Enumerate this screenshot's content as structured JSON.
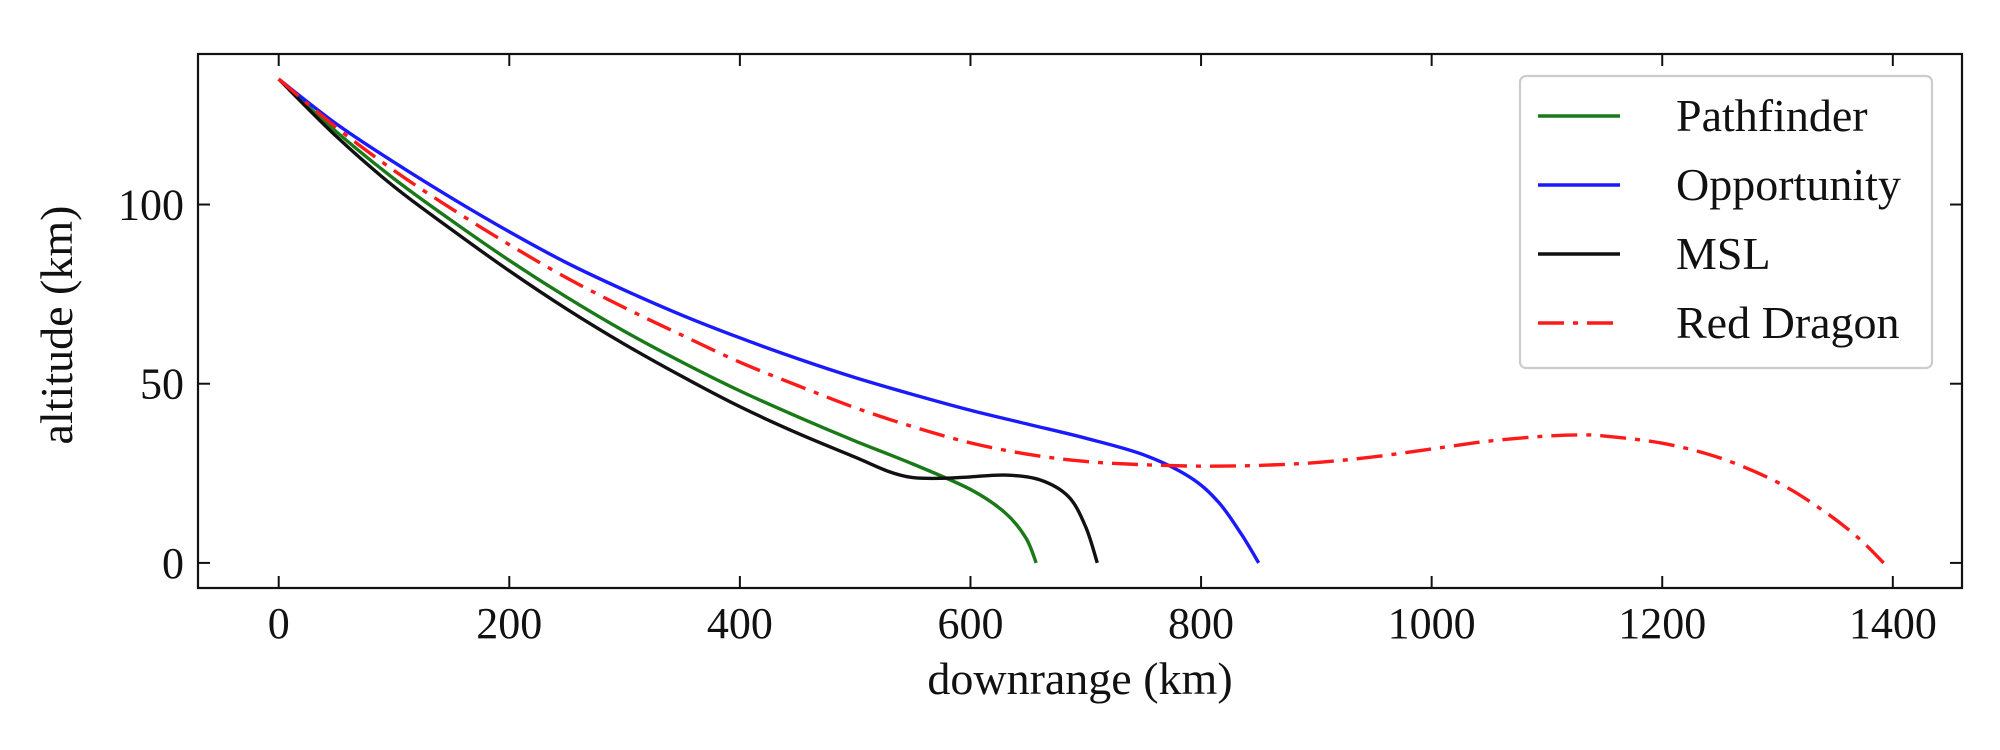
{
  "chart_data": {
    "type": "line",
    "title": "",
    "xlabel": "downrange (km)",
    "ylabel": "altitude (km)",
    "xlim": [
      -70,
      1460
    ],
    "ylim": [
      -7,
      142
    ],
    "xticks": [
      0,
      200,
      400,
      600,
      800,
      1000,
      1200,
      1400
    ],
    "yticks": [
      0,
      50,
      100
    ],
    "xtick_labels": [
      "0",
      "200",
      "400",
      "600",
      "800",
      "1000",
      "1200",
      "1400"
    ],
    "ytick_labels": [
      "0",
      "50",
      "100"
    ],
    "grid": false,
    "tick_direction": "in",
    "legend_position": "top-right",
    "series": [
      {
        "name": "Pathfinder",
        "color": "#1a7a1a",
        "dash": "solid",
        "points": [
          [
            0,
            135
          ],
          [
            50,
            120.3
          ],
          [
            100,
            107.2
          ],
          [
            150,
            95.5
          ],
          [
            200,
            84.4
          ],
          [
            250,
            74.1
          ],
          [
            300,
            64.6
          ],
          [
            350,
            56
          ],
          [
            400,
            48
          ],
          [
            450,
            40.8
          ],
          [
            500,
            34
          ],
          [
            550,
            27.6
          ],
          [
            600,
            20.5
          ],
          [
            630,
            14
          ],
          [
            648,
            7
          ],
          [
            657,
            0
          ]
        ]
      },
      {
        "name": "Opportunity",
        "color": "#1a1aff",
        "dash": "solid",
        "points": [
          [
            0,
            135
          ],
          [
            50,
            122.5
          ],
          [
            100,
            111.8
          ],
          [
            150,
            101.8
          ],
          [
            200,
            92.4
          ],
          [
            250,
            83.7
          ],
          [
            300,
            76.1
          ],
          [
            350,
            69.1
          ],
          [
            400,
            62.8
          ],
          [
            450,
            57
          ],
          [
            500,
            51.7
          ],
          [
            550,
            47
          ],
          [
            600,
            42.6
          ],
          [
            650,
            38.7
          ],
          [
            700,
            34.8
          ],
          [
            750,
            30.2
          ],
          [
            790,
            24
          ],
          [
            815,
            17
          ],
          [
            835,
            8
          ],
          [
            850,
            0
          ]
        ]
      },
      {
        "name": "MSL",
        "color": "#111111",
        "dash": "solid",
        "points": [
          [
            0,
            135
          ],
          [
            50,
            119
          ],
          [
            100,
            105
          ],
          [
            150,
            93
          ],
          [
            200,
            81.5
          ],
          [
            250,
            70.8
          ],
          [
            300,
            61
          ],
          [
            350,
            52
          ],
          [
            400,
            43.6
          ],
          [
            450,
            36.2
          ],
          [
            500,
            29.5
          ],
          [
            530,
            25.4
          ],
          [
            550,
            23.8
          ],
          [
            575,
            23.6
          ],
          [
            600,
            24
          ],
          [
            630,
            24.5
          ],
          [
            660,
            23.2
          ],
          [
            685,
            18.5
          ],
          [
            700,
            10
          ],
          [
            710,
            0
          ]
        ]
      },
      {
        "name": "Red Dragon",
        "color": "#ff1a1a",
        "dash": "dashdot",
        "points": [
          [
            0,
            135
          ],
          [
            50,
            121.5
          ],
          [
            100,
            109.5
          ],
          [
            150,
            98.8
          ],
          [
            200,
            88.8
          ],
          [
            250,
            79.5
          ],
          [
            300,
            71.2
          ],
          [
            350,
            63.5
          ],
          [
            400,
            56
          ],
          [
            450,
            49.5
          ],
          [
            500,
            43.3
          ],
          [
            550,
            38
          ],
          [
            600,
            33.5
          ],
          [
            650,
            30.3
          ],
          [
            700,
            28.3
          ],
          [
            750,
            27.4
          ],
          [
            800,
            27
          ],
          [
            850,
            27.2
          ],
          [
            900,
            28
          ],
          [
            950,
            29.6
          ],
          [
            1000,
            31.8
          ],
          [
            1050,
            34
          ],
          [
            1100,
            35.4
          ],
          [
            1130,
            35.7
          ],
          [
            1150,
            35.4
          ],
          [
            1200,
            33.4
          ],
          [
            1250,
            29.3
          ],
          [
            1300,
            22.5
          ],
          [
            1340,
            14.5
          ],
          [
            1370,
            7
          ],
          [
            1392,
            0
          ]
        ]
      }
    ]
  }
}
